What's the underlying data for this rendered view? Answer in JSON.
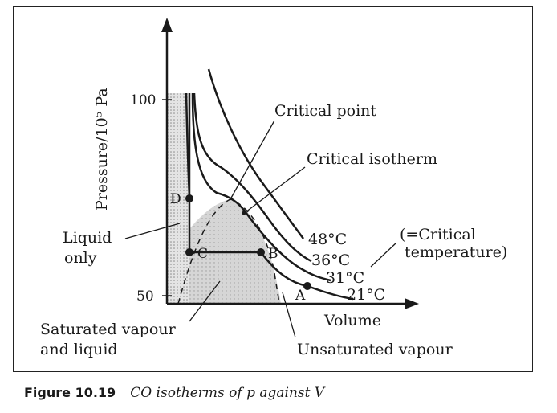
{
  "axes": {
    "y_label": "Pressure/10⁵ Pa",
    "x_label": "Volume",
    "y_ticks": [
      "100",
      "50"
    ]
  },
  "isotherms": [
    "48°C",
    "36°C",
    "31°C",
    "21°C"
  ],
  "points": [
    "A",
    "B",
    "C",
    "D"
  ],
  "annotations": {
    "critical_point": "Critical point",
    "critical_isotherm": "Critical isotherm",
    "critical_temp_line1": "(=Critical",
    "critical_temp_line2": "temperature)",
    "liquid_line1": "Liquid",
    "liquid_line2": "only",
    "saturated_line1": "Saturated vapour",
    "saturated_line2": "and liquid",
    "unsaturated": "Unsaturated vapour"
  },
  "caption": {
    "number": "Figure 10.19",
    "text": "CO isotherms of p against V"
  },
  "colors": {
    "stroke": "#1a1a1a",
    "shade": "#d4d4d4"
  }
}
